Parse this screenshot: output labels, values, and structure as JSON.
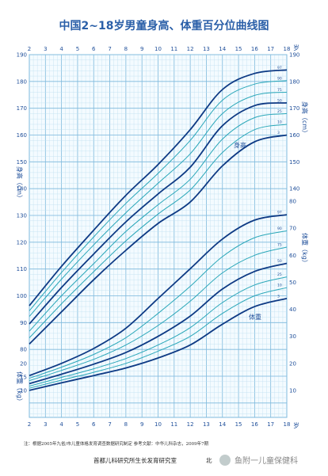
{
  "chart_data": {
    "type": "line",
    "title": "中国2~18岁男童身高、体重百分位曲线图",
    "x_unit_label": "岁",
    "x_ticks": [
      2,
      3,
      4,
      5,
      6,
      7,
      8,
      9,
      10,
      11,
      12,
      13,
      14,
      15,
      16,
      17,
      18
    ],
    "xlim": [
      2,
      18
    ],
    "height_axis": {
      "label": "身高（cm）",
      "ylim": [
        70,
        190
      ],
      "left_ticks": [
        80,
        90,
        100,
        110,
        120,
        130,
        140,
        150,
        160,
        170,
        180,
        190
      ],
      "right_ticks": [
        140,
        150,
        160,
        170,
        180,
        190
      ]
    },
    "weight_axis": {
      "label": "体重（kg）",
      "ylim": [
        5,
        80
      ],
      "left_ticks": [
        10,
        15,
        20
      ],
      "right_ticks": [
        10,
        20,
        30,
        40,
        50,
        60,
        70,
        80
      ]
    },
    "height_curve_label": "身高",
    "weight_curve_label": "体重",
    "percentile_labels": [
      "97",
      "90",
      "75",
      "50",
      "25",
      "10",
      "3"
    ],
    "height_series": [
      {
        "name": "97",
        "values": [
          [
            2,
            96.3
          ],
          [
            4,
            111
          ],
          [
            6,
            124.5
          ],
          [
            8,
            137.5
          ],
          [
            10,
            149
          ],
          [
            12,
            162
          ],
          [
            14,
            177
          ],
          [
            16,
            183
          ],
          [
            18,
            184.3
          ]
        ]
      },
      {
        "name": "90",
        "values": [
          [
            2,
            94.4
          ],
          [
            4,
            108.7
          ],
          [
            6,
            122
          ],
          [
            8,
            134.5
          ],
          [
            10,
            145.7
          ],
          [
            12,
            158
          ],
          [
            14,
            173
          ],
          [
            16,
            179
          ],
          [
            18,
            180.3
          ]
        ]
      },
      {
        "name": "75",
        "values": [
          [
            2,
            92.3
          ],
          [
            4,
            106.2
          ],
          [
            6,
            119
          ],
          [
            8,
            131
          ],
          [
            10,
            142
          ],
          [
            12,
            153
          ],
          [
            14,
            168
          ],
          [
            16,
            174.8
          ],
          [
            18,
            176
          ]
        ]
      },
      {
        "name": "50",
        "values": [
          [
            2,
            89.5
          ],
          [
            4,
            103.1
          ],
          [
            6,
            115.6
          ],
          [
            8,
            127.6
          ],
          [
            10,
            138
          ],
          [
            12,
            148
          ],
          [
            14,
            163.5
          ],
          [
            16,
            171
          ],
          [
            18,
            172
          ]
        ]
      },
      {
        "name": "25",
        "values": [
          [
            2,
            86.8
          ],
          [
            4,
            100
          ],
          [
            6,
            112
          ],
          [
            8,
            124
          ],
          [
            10,
            134
          ],
          [
            12,
            143.5
          ],
          [
            14,
            158.5
          ],
          [
            16,
            166.5
          ],
          [
            18,
            168
          ]
        ]
      },
      {
        "name": "10",
        "values": [
          [
            2,
            84.3
          ],
          [
            4,
            97
          ],
          [
            6,
            109
          ],
          [
            8,
            120.5
          ],
          [
            10,
            130.5
          ],
          [
            12,
            139.5
          ],
          [
            14,
            153.5
          ],
          [
            16,
            162
          ],
          [
            18,
            164
          ]
        ]
      },
      {
        "name": "3",
        "values": [
          [
            2,
            82
          ],
          [
            4,
            94
          ],
          [
            6,
            106
          ],
          [
            8,
            117
          ],
          [
            10,
            127
          ],
          [
            12,
            135
          ],
          [
            14,
            148.5
          ],
          [
            16,
            157.5
          ],
          [
            18,
            160
          ]
        ]
      }
    ],
    "weight_series": [
      {
        "name": "97",
        "values": [
          [
            2,
            15.5
          ],
          [
            4,
            20
          ],
          [
            6,
            25.5
          ],
          [
            8,
            33
          ],
          [
            10,
            44
          ],
          [
            12,
            55
          ],
          [
            14,
            66
          ],
          [
            16,
            73
          ],
          [
            18,
            75
          ]
        ]
      },
      {
        "name": "90",
        "values": [
          [
            2,
            14.5
          ],
          [
            4,
            18.6
          ],
          [
            6,
            23.3
          ],
          [
            8,
            29.5
          ],
          [
            10,
            38.5
          ],
          [
            12,
            48.5
          ],
          [
            14,
            59.5
          ],
          [
            16,
            66.5
          ],
          [
            18,
            69
          ]
        ]
      },
      {
        "name": "75",
        "values": [
          [
            2,
            13.6
          ],
          [
            4,
            17.4
          ],
          [
            6,
            21.5
          ],
          [
            8,
            26.8
          ],
          [
            10,
            34
          ],
          [
            12,
            43
          ],
          [
            14,
            53.5
          ],
          [
            16,
            60
          ],
          [
            18,
            63
          ]
        ]
      },
      {
        "name": "50",
        "values": [
          [
            2,
            12.5
          ],
          [
            4,
            16
          ],
          [
            6,
            19.7
          ],
          [
            8,
            24
          ],
          [
            10,
            30
          ],
          [
            12,
            37.5
          ],
          [
            14,
            47.5
          ],
          [
            16,
            54
          ],
          [
            18,
            57
          ]
        ]
      },
      {
        "name": "25",
        "values": [
          [
            2,
            11.6
          ],
          [
            4,
            14.8
          ],
          [
            6,
            18
          ],
          [
            8,
            21.8
          ],
          [
            10,
            26.8
          ],
          [
            12,
            33.2
          ],
          [
            14,
            42.5
          ],
          [
            16,
            49
          ],
          [
            18,
            52
          ]
        ]
      },
      {
        "name": "10",
        "values": [
          [
            2,
            10.8
          ],
          [
            4,
            13.8
          ],
          [
            6,
            16.7
          ],
          [
            8,
            20
          ],
          [
            10,
            24.5
          ],
          [
            12,
            30
          ],
          [
            14,
            38.5
          ],
          [
            16,
            45
          ],
          [
            18,
            48
          ]
        ]
      },
      {
        "name": "3",
        "values": [
          [
            2,
            10
          ],
          [
            4,
            12.8
          ],
          [
            6,
            15.5
          ],
          [
            8,
            18.3
          ],
          [
            10,
            22
          ],
          [
            12,
            26.8
          ],
          [
            14,
            34.5
          ],
          [
            16,
            41
          ],
          [
            18,
            44
          ]
        ]
      }
    ],
    "grid": true
  },
  "footnote": "注：根据2005年九省/市儿童体格发育调查数据研究制定     参考文献：中华儿科杂志，2009年7期",
  "institution": "首都儿科研究所生长发育研究室",
  "institution_tail": "北",
  "watermark": "鱼附一儿童保健科",
  "colors": {
    "grid": "#7db9dc",
    "minor_grid": "#bfe0f0",
    "curve_dark": "#0e3a84",
    "curve_light": "#2aa7b8",
    "title": "#2a5fa8"
  }
}
